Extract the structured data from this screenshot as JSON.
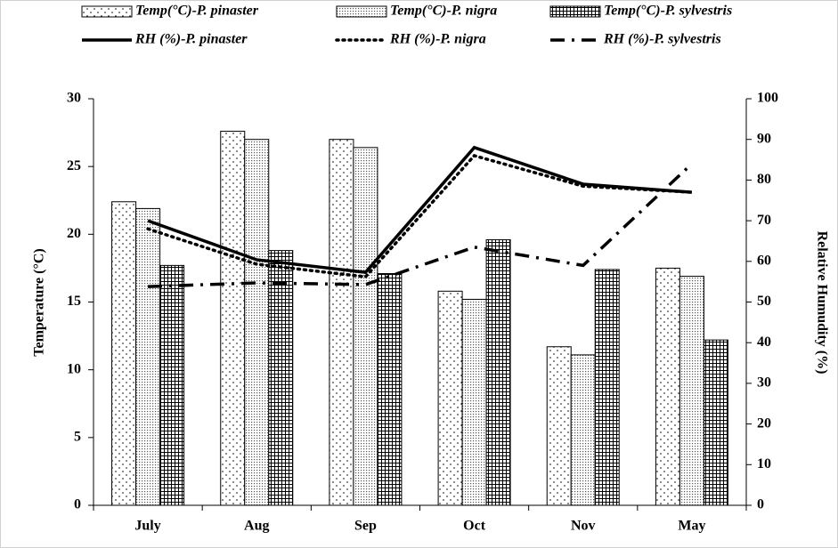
{
  "chart_data": {
    "type": "bar",
    "categories": [
      "July",
      "Aug",
      "Sep",
      "Oct",
      "Nov",
      "May"
    ],
    "y_label": "Temperature (°C)",
    "y2_label": "Relative Humudity (%)",
    "ylim": [
      0,
      30
    ],
    "yticks": [
      0,
      5,
      10,
      15,
      20,
      25,
      30
    ],
    "y2lim": [
      0,
      100
    ],
    "y2ticks": [
      0,
      10,
      20,
      30,
      40,
      50,
      60,
      70,
      80,
      90,
      100
    ],
    "legend": "top",
    "series": [
      {
        "name": "Temp(°C)-P. pinaster",
        "type": "bar",
        "pattern": "dots",
        "color": "#000000",
        "values": [
          22.4,
          27.6,
          27.0,
          15.8,
          11.7,
          17.5
        ]
      },
      {
        "name": "Temp(°C)-P. nigra",
        "type": "bar",
        "pattern": "dense-dots",
        "color": "#000000",
        "values": [
          21.9,
          27.0,
          26.4,
          15.2,
          11.1,
          16.9
        ]
      },
      {
        "name": "Temp(°C)-P. sylvestris",
        "type": "bar",
        "pattern": "grid",
        "color": "#000000",
        "values": [
          17.7,
          18.8,
          17.1,
          19.6,
          17.4,
          12.2
        ]
      },
      {
        "name": "RH (%)-P. pinaster",
        "type": "line",
        "dash": "solid",
        "axis": "y2",
        "color": "#000000",
        "values": [
          70,
          60.4,
          57.3,
          88,
          79,
          77
        ]
      },
      {
        "name": "RH (%)-P. nigra",
        "type": "line",
        "dash": "dotted",
        "axis": "y2",
        "color": "#000000",
        "values": [
          68,
          59.3,
          56.2,
          86,
          78.5,
          77
        ]
      },
      {
        "name": "RH (%)-P. sylvestris",
        "type": "line",
        "dash": "dash-dot",
        "axis": "y2",
        "color": "#000000",
        "values": [
          53.8,
          54.7,
          54.3,
          63.5,
          59,
          84
        ]
      }
    ]
  }
}
